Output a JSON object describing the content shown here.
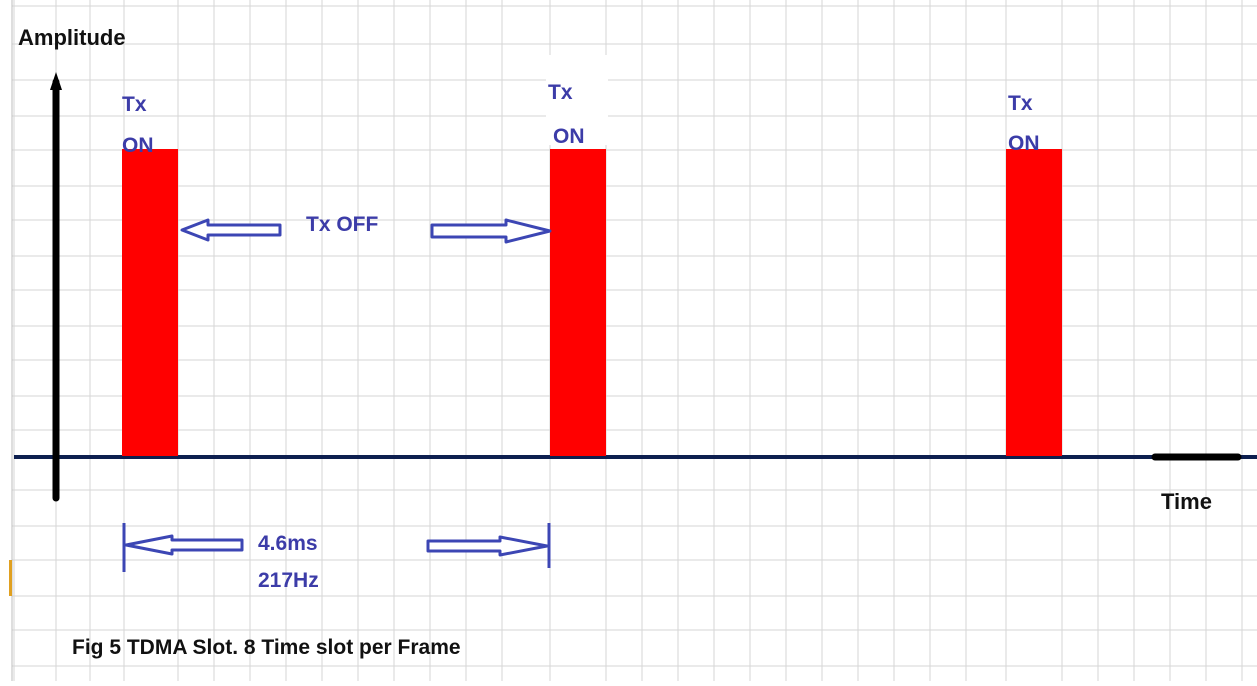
{
  "diagram": {
    "axis_y_label": "Amplitude",
    "axis_x_label": "Time",
    "pulse_label_line1": "Tx",
    "pulse_label_line2": "ON",
    "gap_label": "Tx OFF",
    "period_label": "4.6ms",
    "frequency_label": "217Hz",
    "caption": "Fig 5 TDMA Slot. 8 Time slot per Frame"
  },
  "colors": {
    "pulse": "#ff0000",
    "baseline": "#0d1f4f",
    "axis": "#000000",
    "blue_text": "#3c3ca8",
    "arrow": "#3c46b4",
    "grid": "#d6d6d6"
  }
}
